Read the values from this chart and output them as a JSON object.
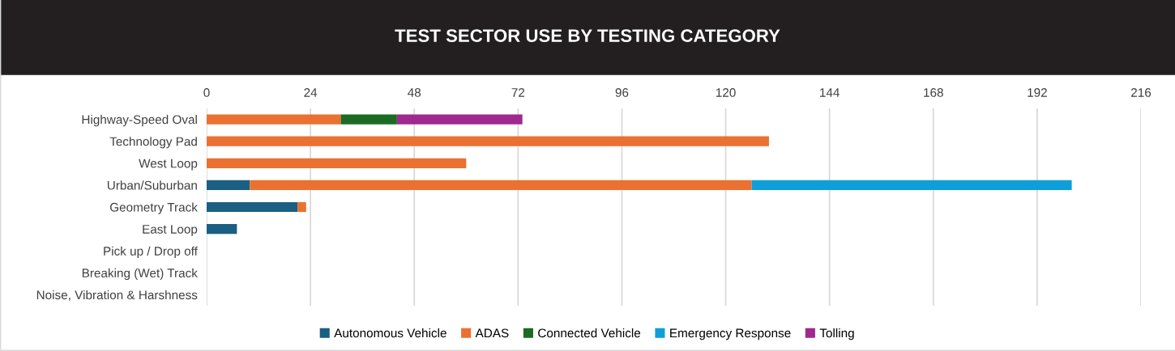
{
  "chart_data": {
    "type": "bar",
    "title": "TEST SECTOR USE BY TESTING CATEGORY",
    "orientation": "horizontal",
    "stacked": true,
    "categories": [
      "Highway-Speed Oval",
      "Technology Pad",
      "West Loop",
      "Urban/Suburban",
      "Geometry Track",
      "East Loop",
      "Pick up / Drop off",
      "Breaking (Wet) Track",
      "Noise, Vibration & Harshness"
    ],
    "series": [
      {
        "name": "Autonomous Vehicle",
        "color": "#1b5f82",
        "values": [
          0,
          0,
          0,
          10,
          21,
          7,
          0,
          0,
          0
        ]
      },
      {
        "name": "ADAS",
        "color": "#ea7131",
        "values": [
          31,
          130,
          60,
          116,
          2,
          0,
          0,
          0,
          0
        ]
      },
      {
        "name": "Connected Vehicle",
        "color": "#1c6b24",
        "values": [
          13,
          0,
          0,
          0,
          0,
          0,
          0,
          0,
          0
        ]
      },
      {
        "name": "Emergency Response",
        "color": "#0e9fd8",
        "values": [
          0,
          0,
          0,
          74,
          0,
          0,
          0,
          0,
          0
        ]
      },
      {
        "name": "Tolling",
        "color": "#9e2a8e",
        "values": [
          29,
          0,
          0,
          0,
          0,
          0,
          0,
          0,
          0
        ]
      }
    ],
    "xlim": [
      0,
      216
    ],
    "xticks": [
      0,
      24,
      48,
      72,
      96,
      120,
      144,
      168,
      192,
      216
    ],
    "grid": "x",
    "legend": "bottom"
  }
}
